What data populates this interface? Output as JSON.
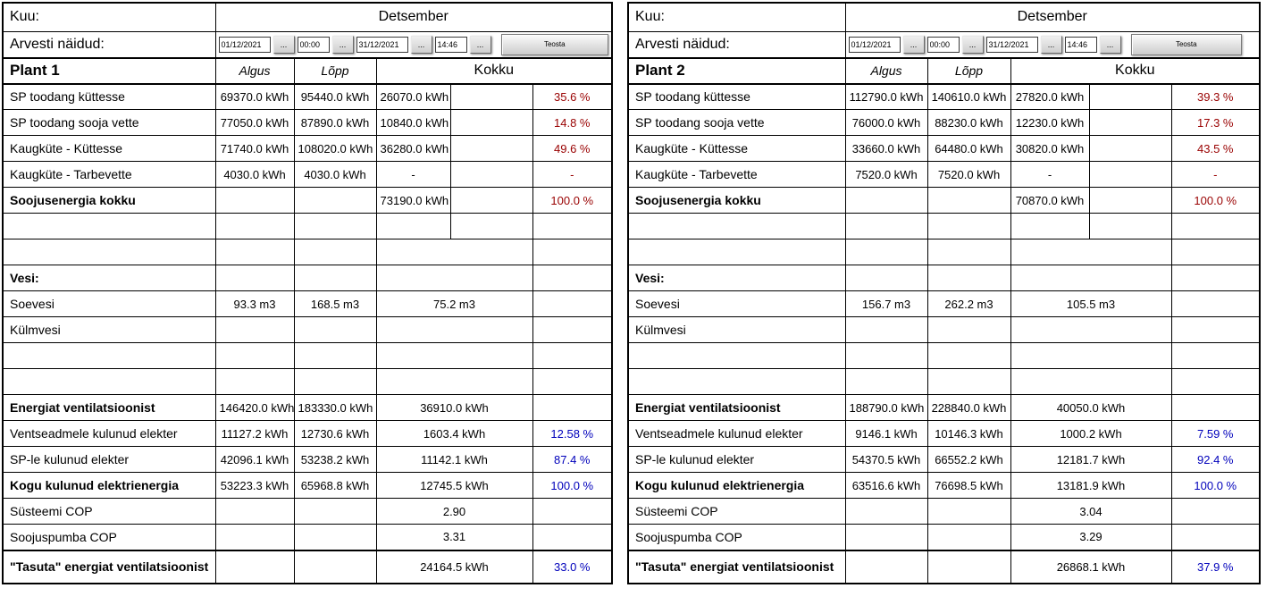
{
  "colors": {
    "percent_red": "#990000",
    "percent_blue": "#0000bb"
  },
  "controls": {
    "date_from": "01/12/2021",
    "time_from": "00:00",
    "date_to": "31/12/2021",
    "time_to": "14:46",
    "browse_label": "...",
    "run_label": "Teosta"
  },
  "panels": [
    {
      "title": "Plant 1",
      "month_label": "Kuu:",
      "month_value": "Detsember",
      "meters_label": "Arvesti näidud:",
      "col_algus": "Algus",
      "col_lopp": "Lõpp",
      "col_kokku": "Kokku",
      "rows": [
        {
          "label": "SP toodang küttesse",
          "bold": false,
          "type": "split",
          "algus": "69370.0 kWh",
          "lopp": "95440.0 kWh",
          "value": "26070.0 kWh",
          "pct": "35.6 %",
          "pct_color": "percent_red"
        },
        {
          "label": "SP toodang sooja vette",
          "bold": false,
          "type": "split",
          "algus": "77050.0 kWh",
          "lopp": "87890.0 kWh",
          "value": "10840.0 kWh",
          "pct": "14.8 %",
          "pct_color": "percent_red"
        },
        {
          "label": "Kaugküte - Küttesse",
          "bold": false,
          "type": "split",
          "algus": "71740.0 kWh",
          "lopp": "108020.0 kWh",
          "value": "36280.0 kWh",
          "pct": "49.6 %",
          "pct_color": "percent_red"
        },
        {
          "label": "Kaugküte - Tarbevette",
          "bold": false,
          "type": "split",
          "algus": "4030.0 kWh",
          "lopp": "4030.0 kWh",
          "value": "-",
          "pct": "-",
          "pct_color": "percent_red"
        },
        {
          "label": "Soojusenergia kokku",
          "bold": true,
          "type": "split",
          "algus": "",
          "lopp": "",
          "value": "73190.0 kWh",
          "pct": "100.0 %",
          "pct_color": "percent_red"
        },
        {
          "label": "",
          "bold": false,
          "type": "split",
          "algus": "",
          "lopp": "",
          "value": "",
          "pct": "",
          "pct_color": null
        },
        {
          "label": "",
          "bold": false,
          "type": "merged",
          "algus": "",
          "lopp": "",
          "value": "",
          "pct": "",
          "pct_color": null
        },
        {
          "label": "Vesi:",
          "bold": true,
          "type": "merged",
          "algus": "",
          "lopp": "",
          "value": "",
          "pct": "",
          "pct_color": null
        },
        {
          "label": "Soevesi",
          "bold": false,
          "type": "merged",
          "algus": "93.3 m3",
          "lopp": "168.5 m3",
          "value": "75.2 m3",
          "pct": "",
          "pct_color": null
        },
        {
          "label": "Külmvesi",
          "bold": false,
          "type": "merged",
          "algus": "",
          "lopp": "",
          "value": "",
          "pct": "",
          "pct_color": null
        },
        {
          "label": "",
          "bold": false,
          "type": "merged",
          "algus": "",
          "lopp": "",
          "value": "",
          "pct": "",
          "pct_color": null
        },
        {
          "label": "",
          "bold": false,
          "type": "merged",
          "algus": "",
          "lopp": "",
          "value": "",
          "pct": "",
          "pct_color": null
        },
        {
          "label": "Energiat ventilatsioonist",
          "bold": true,
          "type": "merged",
          "algus": "146420.0 kWh",
          "lopp": "183330.0 kWh",
          "value": "36910.0 kWh",
          "pct": "",
          "pct_color": null
        },
        {
          "label": "Ventseadmele kulunud elekter",
          "bold": false,
          "type": "merged",
          "algus": "11127.2 kWh",
          "lopp": "12730.6 kWh",
          "value": "1603.4 kWh",
          "pct": "12.58 %",
          "pct_color": "percent_blue"
        },
        {
          "label": "SP-le kulunud elekter",
          "bold": false,
          "type": "merged",
          "algus": "42096.1 kWh",
          "lopp": "53238.2 kWh",
          "value": "11142.1 kWh",
          "pct": "87.4 %",
          "pct_color": "percent_blue"
        },
        {
          "label": "Kogu kulunud elektrienergia",
          "bold": true,
          "type": "merged",
          "algus": "53223.3 kWh",
          "lopp": "65968.8 kWh",
          "value": "12745.5 kWh",
          "pct": "100.0 %",
          "pct_color": "percent_blue"
        },
        {
          "label": "Süsteemi COP",
          "bold": false,
          "type": "merged",
          "algus": "",
          "lopp": "",
          "value": "2.90",
          "pct": "",
          "pct_color": null
        },
        {
          "label": "Soojuspumba COP",
          "bold": false,
          "type": "merged",
          "algus": "",
          "lopp": "",
          "value": "3.31",
          "pct": "",
          "pct_color": null
        },
        {
          "label": "\"Tasuta\" energiat ventilatsioonist",
          "bold": true,
          "tall": true,
          "type": "merged",
          "algus": "",
          "lopp": "",
          "value": "24164.5 kWh",
          "pct": "33.0 %",
          "pct_color": "percent_blue"
        }
      ]
    },
    {
      "title": "Plant 2",
      "month_label": "Kuu:",
      "month_value": "Detsember",
      "meters_label": "Arvesti näidud:",
      "col_algus": "Algus",
      "col_lopp": "Lõpp",
      "col_kokku": "Kokku",
      "rows": [
        {
          "label": "SP toodang küttesse",
          "bold": false,
          "type": "split",
          "algus": "112790.0 kWh",
          "lopp": "140610.0 kWh",
          "value": "27820.0 kWh",
          "pct": "39.3 %",
          "pct_color": "percent_red"
        },
        {
          "label": "SP toodang sooja vette",
          "bold": false,
          "type": "split",
          "algus": "76000.0 kWh",
          "lopp": "88230.0 kWh",
          "value": "12230.0 kWh",
          "pct": "17.3 %",
          "pct_color": "percent_red"
        },
        {
          "label": "Kaugküte - Küttesse",
          "bold": false,
          "type": "split",
          "algus": "33660.0 kWh",
          "lopp": "64480.0 kWh",
          "value": "30820.0 kWh",
          "pct": "43.5 %",
          "pct_color": "percent_red"
        },
        {
          "label": "Kaugküte - Tarbevette",
          "bold": false,
          "type": "split",
          "algus": "7520.0 kWh",
          "lopp": "7520.0 kWh",
          "value": "-",
          "pct": "-",
          "pct_color": "percent_red"
        },
        {
          "label": "Soojusenergia kokku",
          "bold": true,
          "type": "split",
          "algus": "",
          "lopp": "",
          "value": "70870.0 kWh",
          "pct": "100.0 %",
          "pct_color": "percent_red"
        },
        {
          "label": "",
          "bold": false,
          "type": "split",
          "algus": "",
          "lopp": "",
          "value": "",
          "pct": "",
          "pct_color": null
        },
        {
          "label": "",
          "bold": false,
          "type": "merged",
          "algus": "",
          "lopp": "",
          "value": "",
          "pct": "",
          "pct_color": null
        },
        {
          "label": "Vesi:",
          "bold": true,
          "type": "merged",
          "algus": "",
          "lopp": "",
          "value": "",
          "pct": "",
          "pct_color": null
        },
        {
          "label": "Soevesi",
          "bold": false,
          "type": "merged",
          "algus": "156.7 m3",
          "lopp": "262.2 m3",
          "value": "105.5 m3",
          "pct": "",
          "pct_color": null
        },
        {
          "label": "Külmvesi",
          "bold": false,
          "type": "merged",
          "algus": "",
          "lopp": "",
          "value": "",
          "pct": "",
          "pct_color": null
        },
        {
          "label": "",
          "bold": false,
          "type": "merged",
          "algus": "",
          "lopp": "",
          "value": "",
          "pct": "",
          "pct_color": null
        },
        {
          "label": "",
          "bold": false,
          "type": "merged",
          "algus": "",
          "lopp": "",
          "value": "",
          "pct": "",
          "pct_color": null
        },
        {
          "label": "Energiat ventilatsioonist",
          "bold": true,
          "type": "merged",
          "algus": "188790.0 kWh",
          "lopp": "228840.0 kWh",
          "value": "40050.0 kWh",
          "pct": "",
          "pct_color": null
        },
        {
          "label": "Ventseadmele kulunud elekter",
          "bold": false,
          "type": "merged",
          "algus": "9146.1 kWh",
          "lopp": "10146.3 kWh",
          "value": "1000.2 kWh",
          "pct": "7.59 %",
          "pct_color": "percent_blue"
        },
        {
          "label": "SP-le kulunud elekter",
          "bold": false,
          "type": "merged",
          "algus": "54370.5 kWh",
          "lopp": "66552.2 kWh",
          "value": "12181.7 kWh",
          "pct": "92.4 %",
          "pct_color": "percent_blue"
        },
        {
          "label": "Kogu kulunud elektrienergia",
          "bold": true,
          "type": "merged",
          "algus": "63516.6 kWh",
          "lopp": "76698.5 kWh",
          "value": "13181.9 kWh",
          "pct": "100.0 %",
          "pct_color": "percent_blue"
        },
        {
          "label": "Süsteemi COP",
          "bold": false,
          "type": "merged",
          "algus": "",
          "lopp": "",
          "value": "3.04",
          "pct": "",
          "pct_color": null
        },
        {
          "label": "Soojuspumba COP",
          "bold": false,
          "type": "merged",
          "algus": "",
          "lopp": "",
          "value": "3.29",
          "pct": "",
          "pct_color": null
        },
        {
          "label": "\"Tasuta\" energiat ventilatsioonist",
          "bold": true,
          "tall": true,
          "type": "merged",
          "algus": "",
          "lopp": "",
          "value": "26868.1 kWh",
          "pct": "37.9 %",
          "pct_color": "percent_blue"
        }
      ]
    }
  ]
}
